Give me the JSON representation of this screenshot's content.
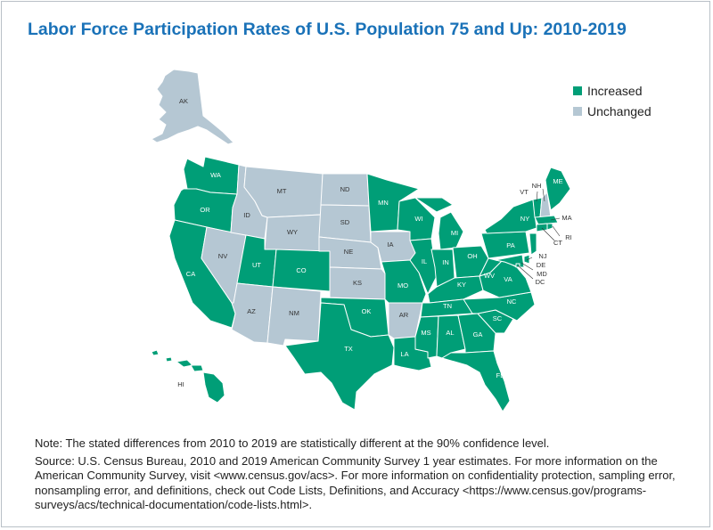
{
  "title": "Labor Force Participation Rates of U.S. Population 75 and Up: 2010-2019",
  "legend": [
    {
      "label": "Increased",
      "color": "#009e77"
    },
    {
      "label": "Unchanged",
      "color": "#b5c7d3"
    }
  ],
  "states": {
    "AK": "unchanged",
    "HI": "increased",
    "WA": "increased",
    "OR": "increased",
    "CA": "increased",
    "NV": "unchanged",
    "ID": "unchanged",
    "MT": "unchanged",
    "WY": "unchanged",
    "UT": "increased",
    "CO": "increased",
    "AZ": "unchanged",
    "NM": "unchanged",
    "ND": "unchanged",
    "SD": "unchanged",
    "NE": "unchanged",
    "KS": "unchanged",
    "OK": "increased",
    "TX": "increased",
    "MN": "increased",
    "IA": "unchanged",
    "MO": "increased",
    "AR": "unchanged",
    "LA": "increased",
    "WI": "increased",
    "IL": "increased",
    "MI": "increased",
    "IN": "increased",
    "OH": "increased",
    "KY": "increased",
    "TN": "increased",
    "MS": "increased",
    "AL": "increased",
    "GA": "increased",
    "FL": "increased",
    "SC": "increased",
    "NC": "increased",
    "VA": "increased",
    "WV": "increased",
    "PA": "increased",
    "NY": "increased",
    "VT": "increased",
    "NH": "unchanged",
    "ME": "increased",
    "MA": "increased",
    "RI": "increased",
    "CT": "increased",
    "NJ": "increased",
    "DE": "increased",
    "MD": "increased",
    "DC": "increased"
  },
  "note": "Note: The stated differences from 2010 to 2019 are statistically different at the 90% confidence level.",
  "source": "Source: U.S. Census Bureau, 2010 and 2019 American Community Survey 1 year estimates. For more information on the American Community Survey, visit <www.census.gov/acs>. For more information on confidentiality protection, sampling error, nonsampling error, and definitions, check out Code Lists, Definitions, and Accuracy <https://www.census.gov/programs-surveys/acs/technical-documentation/code-lists.html>."
}
